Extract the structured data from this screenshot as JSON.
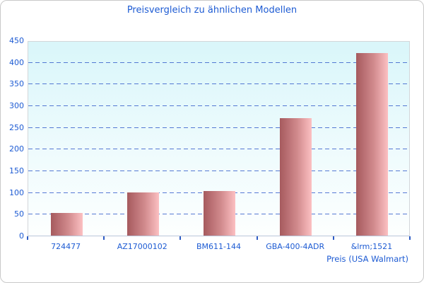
{
  "chart_data": {
    "type": "bar",
    "title": "Preisvergleich zu ähnlichen Modellen",
    "xlabel": "Preis (USA Walmart)",
    "ylabel": "",
    "categories": [
      "724477",
      "AZ17000102",
      "BM611-144",
      "GBA-400-4ADR",
      "&lrm;1521"
    ],
    "values": [
      52,
      100,
      102,
      270,
      420
    ],
    "ylim": [
      0,
      450
    ],
    "ytick_step": 50,
    "ytick_labels": [
      "0",
      "50",
      "100",
      "150",
      "200",
      "250",
      "300",
      "350",
      "400",
      "450"
    ],
    "grid": "horizontal-dashed",
    "legend_position": "none",
    "colors": {
      "text": "#1d5bd3",
      "gridline": "#3a62cc",
      "bar_gradient_start": "#a65a5e",
      "bar_gradient_end": "#fcc0c2",
      "plot_bg_top": "#d9f6fa",
      "plot_bg_bottom": "#fdfffe",
      "card_border": "#c9c9c9"
    }
  }
}
